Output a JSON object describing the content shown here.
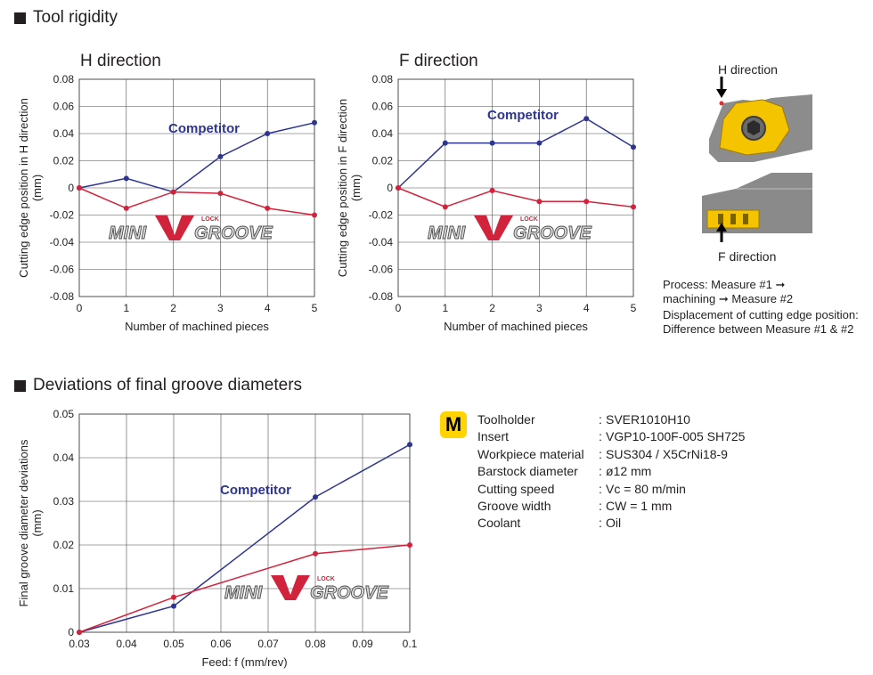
{
  "sections": {
    "tool_rigidity": "Tool rigidity",
    "deviations": "Deviations of final groove diameters"
  },
  "diagram": {
    "h_direction": "H direction",
    "f_direction": "F direction",
    "process_line1": "Process: Measure #1",
    "process_line2a": "machining",
    "process_line2b": "Measure #2",
    "displacement_line1": "Displacement of cutting edge position:",
    "displacement_line2": "Difference between Measure #1 & #2"
  },
  "logo_text": "MINIVGROOVE LOCK",
  "colors": {
    "competitor": "#2e3591",
    "minivgroove": "#d2233c",
    "insert_yellow": "#f5c400",
    "grid": "#4d4d4d"
  },
  "conditions": {
    "badge": "M",
    "rows": [
      {
        "label": "Toolholder",
        "value": "SVER1010H10"
      },
      {
        "label": "Insert",
        "value": "VGP10-100F-005 SH725"
      },
      {
        "label": "Workpiece material",
        "value": "SUS304 / X5CrNi18-9"
      },
      {
        "label": "Barstock diameter",
        "value": "ø12 mm"
      },
      {
        "label": "Cutting speed",
        "value": "Vc = 80 m/min"
      },
      {
        "label": "Groove width",
        "value": "CW = 1 mm"
      },
      {
        "label": "Coolant",
        "value": "Oil"
      }
    ]
  },
  "chart_data": [
    {
      "type": "line",
      "title": "H direction",
      "xlabel": "Number of machined pieces",
      "ylabel": "Cutting edge position in H direction (mm)",
      "x": [
        0,
        1,
        2,
        3,
        4,
        5
      ],
      "xticks": [
        "0",
        "1",
        "2",
        "3",
        "4",
        "5"
      ],
      "yticks": [
        "0.08",
        "0.06",
        "0.04",
        "0.02",
        "0",
        "-0.02",
        "-0.04",
        "-0.06",
        "-0.08"
      ],
      "xlim": [
        0,
        5
      ],
      "ylim": [
        -0.08,
        0.08
      ],
      "grid": true,
      "series": [
        {
          "name": "Competitor",
          "values": [
            0,
            0.007,
            -0.003,
            0.023,
            0.04,
            0.048
          ]
        },
        {
          "name": "MINIVGROOVE",
          "values": [
            0,
            -0.015,
            -0.003,
            -0.004,
            -0.015,
            -0.02
          ]
        }
      ]
    },
    {
      "type": "line",
      "title": "F direction",
      "xlabel": "Number of machined pieces",
      "ylabel": "Cutting edge position in F direction (mm)",
      "x": [
        0,
        1,
        2,
        3,
        4,
        5
      ],
      "xticks": [
        "0",
        "1",
        "2",
        "3",
        "4",
        "5"
      ],
      "yticks": [
        "0.08",
        "0.06",
        "0.04",
        "0.02",
        "0",
        "-0.02",
        "-0.04",
        "-0.06",
        "-0.08"
      ],
      "xlim": [
        0,
        5
      ],
      "ylim": [
        -0.08,
        0.08
      ],
      "grid": true,
      "series": [
        {
          "name": "Competitor",
          "values": [
            0,
            0.033,
            0.033,
            0.033,
            0.051,
            0.03
          ]
        },
        {
          "name": "MINIVGROOVE",
          "values": [
            0,
            -0.014,
            -0.002,
            -0.01,
            -0.01,
            -0.014
          ]
        }
      ]
    },
    {
      "type": "line",
      "title": "",
      "xlabel": "Feed: f (mm/rev)",
      "ylabel": "Final groove diameter deviations (mm)",
      "x": [
        0.03,
        0.05,
        0.08,
        0.1
      ],
      "xticks": [
        "0.03",
        "0.04",
        "0.05",
        "0.06",
        "0.07",
        "0.08",
        "0.09",
        "0.1"
      ],
      "yticks": [
        "0.05",
        "0.04",
        "0.03",
        "0.02",
        "0.01",
        "0"
      ],
      "xlim": [
        0.03,
        0.1
      ],
      "ylim": [
        0,
        0.05
      ],
      "grid": true,
      "series": [
        {
          "name": "Competitor",
          "values": [
            0,
            0.006,
            0.031,
            0.043
          ]
        },
        {
          "name": "MINIVGROOVE",
          "values": [
            0,
            0.008,
            0.018,
            0.02
          ]
        }
      ]
    }
  ]
}
